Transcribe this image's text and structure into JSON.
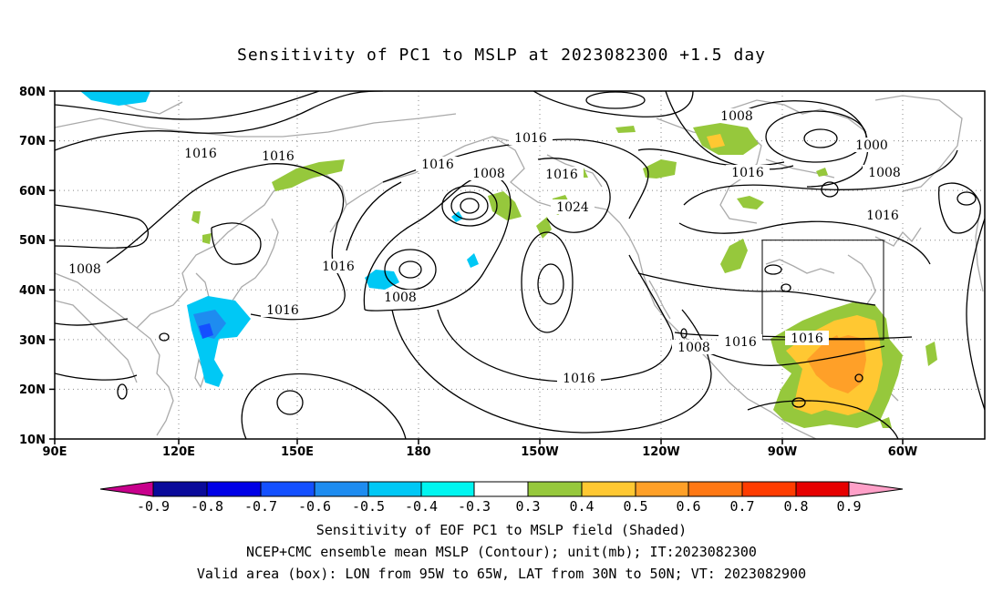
{
  "title": "Sensitivity of PC1 to MSLP at 2023082300 +1.5 day",
  "axes": {
    "lat_labels": [
      "80N",
      "70N",
      "60N",
      "50N",
      "40N",
      "30N",
      "20N",
      "10N"
    ],
    "lon_labels": [
      "90E",
      "120E",
      "150E",
      "180",
      "150W",
      "120W",
      "90W",
      "60W"
    ]
  },
  "contour_labels": [
    "1016",
    "1016",
    "1016",
    "1016",
    "1008",
    "1016",
    "1008",
    "1000",
    "1008",
    "1016",
    "1016",
    "1008",
    "1024",
    "1016",
    "1008",
    "1016",
    "1008",
    "1016",
    "1016",
    "1016"
  ],
  "colorbar": {
    "labels": [
      "-0.9",
      "-0.8",
      "-0.7",
      "-0.6",
      "-0.5",
      "-0.4",
      "-0.3",
      "0.3",
      "0.4",
      "0.5",
      "0.6",
      "0.7",
      "0.8",
      "0.9"
    ],
    "colors": [
      "#c8008c",
      "#0a0a9a",
      "#0000e6",
      "#1450ff",
      "#1e8cf0",
      "#00c8f5",
      "#00f5f0",
      "#ffffff",
      "#96c83c",
      "#ffc832",
      "#ffa028",
      "#ff7814",
      "#ff3c00",
      "#e60000",
      "#ffa0c8"
    ]
  },
  "valid_box": {
    "lon_from": "95W",
    "lon_to": "65W",
    "lat_from": "30N",
    "lat_to": "50N"
  },
  "footer": {
    "line1": "Sensitivity of EOF PC1 to MSLP field (Shaded)",
    "line2": "NCEP+CMC ensemble mean MSLP (Contour); unit(mb); IT:2023082300",
    "line3": "Valid area (box): LON from 95W to 65W, LAT from 30N to 50N; VT: 2023082900"
  }
}
